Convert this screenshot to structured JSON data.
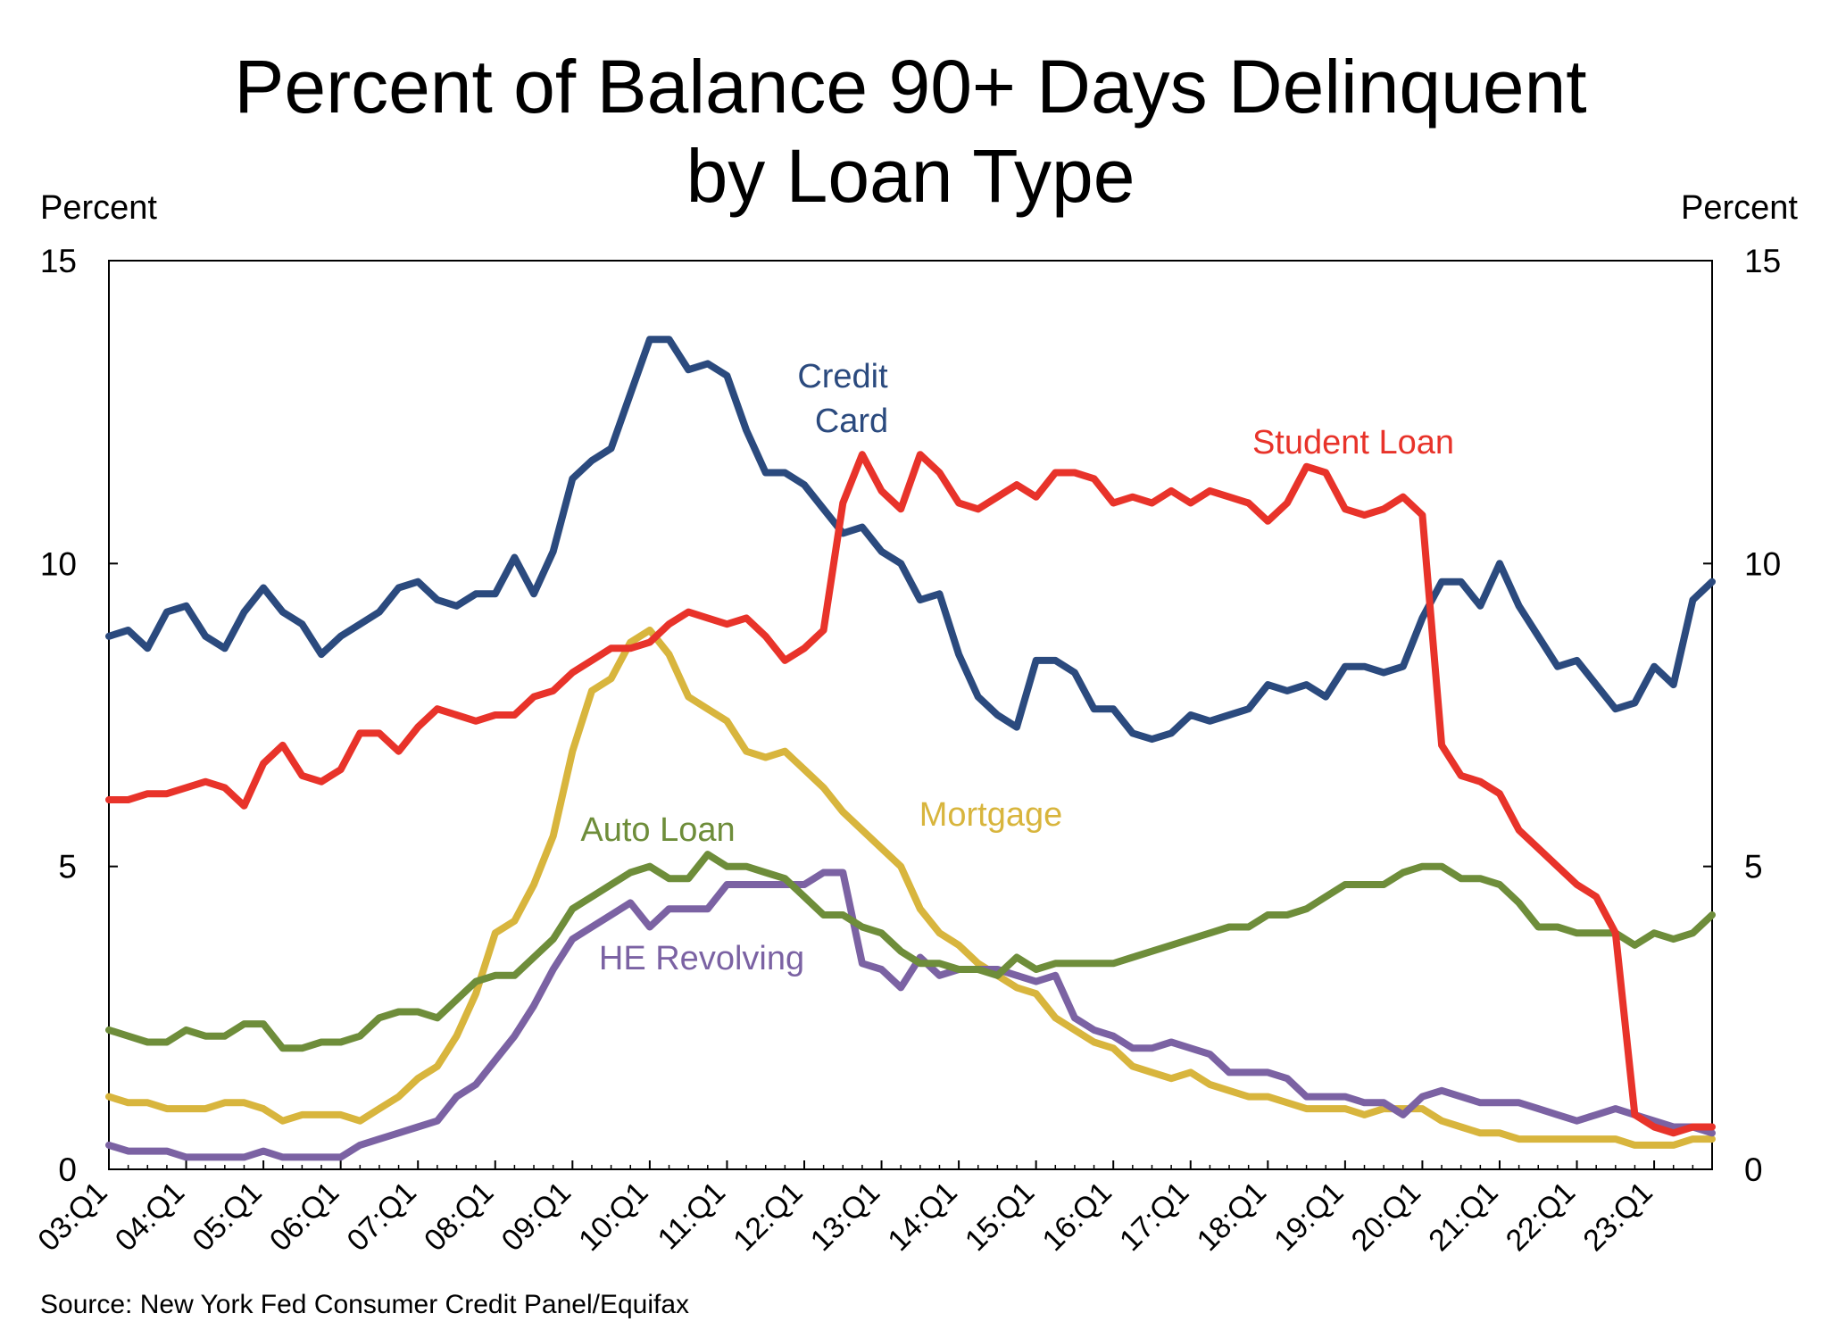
{
  "chart_data": {
    "type": "line",
    "title_line1": "Percent of Balance 90+ Days Delinquent",
    "title_line2": "by Loan Type",
    "ylabel_left": "Percent",
    "ylabel_right": "Percent",
    "ylim": [
      0,
      15
    ],
    "yticks": [
      "0",
      "5",
      "10",
      "15"
    ],
    "xticks": [
      "03:Q1",
      "04:Q1",
      "05:Q1",
      "06:Q1",
      "07:Q1",
      "08:Q1",
      "09:Q1",
      "10:Q1",
      "11:Q1",
      "12:Q1",
      "13:Q1",
      "14:Q1",
      "15:Q1",
      "16:Q1",
      "17:Q1",
      "18:Q1",
      "19:Q1",
      "20:Q1",
      "21:Q1",
      "22:Q1",
      "23:Q1"
    ],
    "start": "2003:Q1",
    "end": "2023:Q4",
    "source": "Source: New York Fed Consumer Credit Panel/Equifax",
    "series": [
      {
        "name": "Credit Card",
        "label_line1": "Credit",
        "label_line2": "Card",
        "color": "#2B4A7E",
        "values": [
          8.8,
          8.9,
          8.6,
          9.2,
          9.3,
          8.8,
          8.6,
          9.2,
          9.6,
          9.2,
          9.0,
          8.5,
          8.8,
          9.0,
          9.2,
          9.6,
          9.7,
          9.4,
          9.3,
          9.5,
          9.5,
          10.1,
          9.5,
          10.2,
          11.4,
          11.7,
          11.9,
          12.8,
          13.7,
          13.7,
          13.2,
          13.3,
          13.1,
          12.2,
          11.5,
          11.5,
          11.3,
          10.9,
          10.5,
          10.6,
          10.2,
          10.0,
          9.4,
          9.5,
          8.5,
          7.8,
          7.5,
          7.3,
          8.4,
          8.4,
          8.2,
          7.6,
          7.6,
          7.2,
          7.1,
          7.2,
          7.5,
          7.4,
          7.5,
          7.6,
          8.0,
          7.9,
          8.0,
          7.8,
          8.3,
          8.3,
          8.2,
          8.3,
          9.1,
          9.7,
          9.7,
          9.3,
          10.0,
          9.3,
          8.8,
          8.3,
          8.4,
          8.0,
          7.6,
          7.7,
          8.3,
          8.0,
          9.4,
          9.7
        ]
      },
      {
        "name": "Student Loan",
        "label": "Student Loan",
        "color": "#E8332A",
        "values": [
          6.1,
          6.1,
          6.2,
          6.2,
          6.3,
          6.4,
          6.3,
          6.0,
          6.7,
          7.0,
          6.5,
          6.4,
          6.6,
          7.2,
          7.2,
          6.9,
          7.3,
          7.6,
          7.5,
          7.4,
          7.5,
          7.5,
          7.8,
          7.9,
          8.2,
          8.4,
          8.6,
          8.6,
          8.7,
          9.0,
          9.2,
          9.1,
          9.0,
          9.1,
          8.8,
          8.4,
          8.6,
          8.9,
          11.0,
          11.8,
          11.2,
          10.9,
          11.8,
          11.5,
          11.0,
          10.9,
          11.1,
          11.3,
          11.1,
          11.5,
          11.5,
          11.4,
          11.0,
          11.1,
          11.0,
          11.2,
          11.0,
          11.2,
          11.1,
          11.0,
          10.7,
          11.0,
          11.6,
          11.5,
          10.9,
          10.8,
          10.9,
          11.1,
          10.8,
          7.0,
          6.5,
          6.4,
          6.2,
          5.6,
          5.3,
          5.0,
          4.7,
          4.5,
          3.9,
          0.9,
          0.7,
          0.6,
          0.7,
          0.7
        ]
      },
      {
        "name": "Mortgage",
        "label": "Mortgage",
        "color": "#D8B53D",
        "values": [
          1.2,
          1.1,
          1.1,
          1.0,
          1.0,
          1.0,
          1.1,
          1.1,
          1.0,
          0.8,
          0.9,
          0.9,
          0.9,
          0.8,
          1.0,
          1.2,
          1.5,
          1.7,
          2.2,
          2.9,
          3.9,
          4.1,
          4.7,
          5.5,
          6.9,
          7.9,
          8.1,
          8.7,
          8.9,
          8.5,
          7.8,
          7.6,
          7.4,
          6.9,
          6.8,
          6.9,
          6.6,
          6.3,
          5.9,
          5.6,
          5.3,
          5.0,
          4.3,
          3.9,
          3.7,
          3.4,
          3.2,
          3.0,
          2.9,
          2.5,
          2.3,
          2.1,
          2.0,
          1.7,
          1.6,
          1.5,
          1.6,
          1.4,
          1.3,
          1.2,
          1.2,
          1.1,
          1.0,
          1.0,
          1.0,
          0.9,
          1.0,
          1.0,
          1.0,
          0.8,
          0.7,
          0.6,
          0.6,
          0.5,
          0.5,
          0.5,
          0.5,
          0.5,
          0.5,
          0.4,
          0.4,
          0.4,
          0.5,
          0.5
        ]
      },
      {
        "name": "Auto Loan",
        "label": "Auto Loan",
        "color": "#6E8D3A",
        "values": [
          2.3,
          2.2,
          2.1,
          2.1,
          2.3,
          2.2,
          2.2,
          2.4,
          2.4,
          2.0,
          2.0,
          2.1,
          2.1,
          2.2,
          2.5,
          2.6,
          2.6,
          2.5,
          2.8,
          3.1,
          3.2,
          3.2,
          3.5,
          3.8,
          4.3,
          4.5,
          4.7,
          4.9,
          5.0,
          4.8,
          4.8,
          5.2,
          5.0,
          5.0,
          4.9,
          4.8,
          4.5,
          4.2,
          4.2,
          4.0,
          3.9,
          3.6,
          3.4,
          3.4,
          3.3,
          3.3,
          3.2,
          3.5,
          3.3,
          3.4,
          3.4,
          3.4,
          3.4,
          3.5,
          3.6,
          3.7,
          3.8,
          3.9,
          4.0,
          4.0,
          4.2,
          4.2,
          4.3,
          4.5,
          4.7,
          4.7,
          4.7,
          4.9,
          5.0,
          5.0,
          4.8,
          4.8,
          4.7,
          4.4,
          4.0,
          4.0,
          3.9,
          3.9,
          3.9,
          3.7,
          3.9,
          3.8,
          3.9,
          4.2
        ]
      },
      {
        "name": "HE Revolving",
        "label": "HE Revolving",
        "color": "#7B62A3",
        "values": [
          0.4,
          0.3,
          0.3,
          0.3,
          0.2,
          0.2,
          0.2,
          0.2,
          0.3,
          0.2,
          0.2,
          0.2,
          0.2,
          0.4,
          0.5,
          0.6,
          0.7,
          0.8,
          1.2,
          1.4,
          1.8,
          2.2,
          2.7,
          3.3,
          3.8,
          4.0,
          4.2,
          4.4,
          4.0,
          4.3,
          4.3,
          4.3,
          4.7,
          4.7,
          4.7,
          4.7,
          4.7,
          4.9,
          4.9,
          3.4,
          3.3,
          3.0,
          3.5,
          3.2,
          3.3,
          3.3,
          3.3,
          3.2,
          3.1,
          3.2,
          2.5,
          2.3,
          2.2,
          2.0,
          2.0,
          2.1,
          2.0,
          1.9,
          1.6,
          1.6,
          1.6,
          1.5,
          1.2,
          1.2,
          1.2,
          1.1,
          1.1,
          0.9,
          1.2,
          1.3,
          1.2,
          1.1,
          1.1,
          1.1,
          1.0,
          0.9,
          0.8,
          0.9,
          1.0,
          0.9,
          0.8,
          0.7,
          0.7,
          0.6
        ]
      }
    ]
  }
}
